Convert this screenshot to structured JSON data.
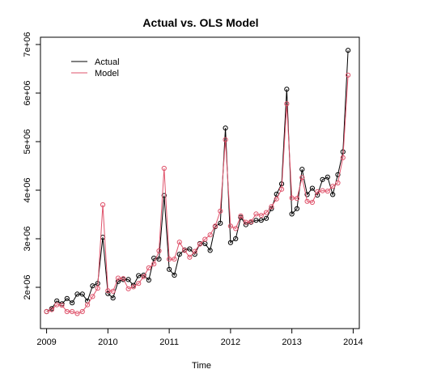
{
  "chart_data": {
    "type": "line",
    "title": "Actual vs. OLS Model",
    "xlabel": "Time",
    "ylabel": "",
    "xlim": [
      2008.9,
      2014.1
    ],
    "ylim": [
      1150000,
      7150000
    ],
    "x_ticks": [
      2009,
      2010,
      2011,
      2012,
      2013,
      2014
    ],
    "x_tick_labels": [
      "2009",
      "2010",
      "2011",
      "2012",
      "2013",
      "2014"
    ],
    "y_ticks": [
      2000000,
      3000000,
      4000000,
      5000000,
      6000000,
      7000000
    ],
    "y_tick_labels": [
      "2e+06",
      "3e+06",
      "4e+06",
      "5e+06",
      "6e+06",
      "7e+06"
    ],
    "legend_position": "top-left",
    "x": [
      2009.0,
      2009.0833,
      2009.1667,
      2009.25,
      2009.3333,
      2009.4167,
      2009.5,
      2009.5833,
      2009.6667,
      2009.75,
      2009.8333,
      2009.9167,
      2010.0,
      2010.0833,
      2010.1667,
      2010.25,
      2010.3333,
      2010.4167,
      2010.5,
      2010.5833,
      2010.6667,
      2010.75,
      2010.8333,
      2010.9167,
      2011.0,
      2011.0833,
      2011.1667,
      2011.25,
      2011.3333,
      2011.4167,
      2011.5,
      2011.5833,
      2011.6667,
      2011.75,
      2011.8333,
      2011.9167,
      2012.0,
      2012.0833,
      2012.1667,
      2012.25,
      2012.3333,
      2012.4167,
      2012.5,
      2012.5833,
      2012.6667,
      2012.75,
      2012.8333,
      2012.9167,
      2013.0,
      2013.0833,
      2013.1667,
      2013.25,
      2013.3333,
      2013.4167,
      2013.5,
      2013.5833,
      2013.6667,
      2013.75,
      2013.8333,
      2013.9167
    ],
    "series": [
      {
        "name": "Actual",
        "color": "#000000",
        "values": [
          1500000,
          1560000,
          1720000,
          1660000,
          1770000,
          1680000,
          1860000,
          1860000,
          1720000,
          2030000,
          2080000,
          3030000,
          1870000,
          1780000,
          2120000,
          2160000,
          2160000,
          2040000,
          2240000,
          2250000,
          2150000,
          2600000,
          2580000,
          3890000,
          2370000,
          2250000,
          2680000,
          2770000,
          2790000,
          2680000,
          2900000,
          2900000,
          2760000,
          3250000,
          3320000,
          5280000,
          2920000,
          3000000,
          3440000,
          3290000,
          3340000,
          3380000,
          3380000,
          3420000,
          3620000,
          3920000,
          4130000,
          6080000,
          3510000,
          3620000,
          4430000,
          3910000,
          4040000,
          3900000,
          4220000,
          4270000,
          3910000,
          4320000,
          4790000,
          6880000
        ]
      },
      {
        "name": "Model",
        "color": "#df536b",
        "values": [
          1500000,
          1540000,
          1640000,
          1630000,
          1500000,
          1500000,
          1460000,
          1500000,
          1640000,
          1810000,
          1980000,
          3700000,
          1930000,
          1920000,
          2190000,
          2180000,
          1970000,
          2010000,
          2080000,
          2220000,
          2400000,
          2480000,
          2750000,
          4450000,
          2580000,
          2580000,
          2930000,
          2760000,
          2620000,
          2740000,
          2890000,
          2990000,
          3080000,
          3260000,
          3570000,
          5040000,
          3260000,
          3210000,
          3470000,
          3340000,
          3350000,
          3510000,
          3480000,
          3540000,
          3660000,
          3820000,
          4020000,
          5780000,
          3840000,
          3830000,
          4260000,
          3770000,
          3750000,
          3970000,
          3990000,
          3980000,
          4080000,
          4150000,
          4670000,
          6370000
        ]
      }
    ]
  }
}
